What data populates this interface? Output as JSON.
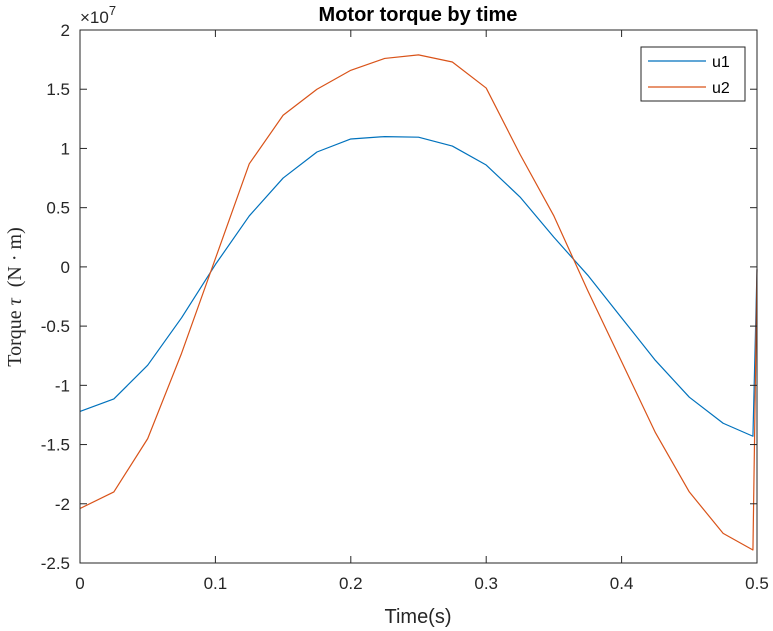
{
  "chart_data": {
    "type": "line",
    "title": "Motor torque by time",
    "xlabel": "Time(s)",
    "ylabel_parts": {
      "word": "Torque",
      "symbol": "τ",
      "unit": "(N · m)"
    },
    "xlim": [
      0,
      0.5
    ],
    "ylim": [
      -2.5,
      2.0
    ],
    "y_exponent": "×10",
    "y_exponent_power": "7",
    "xticks": [
      0,
      0.1,
      0.2,
      0.3,
      0.4,
      0.5
    ],
    "xtick_labels": [
      "0",
      "0.1",
      "0.2",
      "0.3",
      "0.4",
      "0.5"
    ],
    "yticks": [
      2,
      1.5,
      1,
      0.5,
      0,
      -0.5,
      -1,
      -1.5,
      -2,
      -2.5
    ],
    "ytick_labels": [
      "2",
      "1.5",
      "1",
      "0.5",
      "0",
      "-0.5",
      "-1",
      "-1.5",
      "-2",
      "-2.5"
    ],
    "grid": false,
    "legend_position": "top-right",
    "colors": {
      "u1": "#0072BD",
      "u2": "#D95319",
      "axis": "#262626"
    },
    "series": [
      {
        "name": "u1",
        "x": [
          0,
          0.025,
          0.05,
          0.075,
          0.1,
          0.125,
          0.15,
          0.175,
          0.2,
          0.225,
          0.25,
          0.275,
          0.3,
          0.325,
          0.35,
          0.375,
          0.4,
          0.425,
          0.45,
          0.475,
          0.497,
          0.5
        ],
        "y": [
          -1.22,
          -1.115,
          -0.83,
          -0.43,
          0.02,
          0.43,
          0.75,
          0.97,
          1.08,
          1.1,
          1.095,
          1.02,
          0.86,
          0.59,
          0.25,
          -0.07,
          -0.43,
          -0.79,
          -1.1,
          -1.32,
          -1.43,
          -0.02
        ]
      },
      {
        "name": "u2",
        "x": [
          0,
          0.025,
          0.05,
          0.075,
          0.1,
          0.125,
          0.15,
          0.175,
          0.2,
          0.225,
          0.25,
          0.275,
          0.3,
          0.325,
          0.35,
          0.375,
          0.4,
          0.425,
          0.45,
          0.475,
          0.497,
          0.5
        ],
        "y": [
          -2.04,
          -1.9,
          -1.45,
          -0.73,
          0.07,
          0.87,
          1.28,
          1.5,
          1.66,
          1.76,
          1.79,
          1.73,
          1.51,
          0.95,
          0.43,
          -0.2,
          -0.8,
          -1.4,
          -1.9,
          -2.25,
          -2.39,
          -0.02
        ]
      }
    ]
  }
}
